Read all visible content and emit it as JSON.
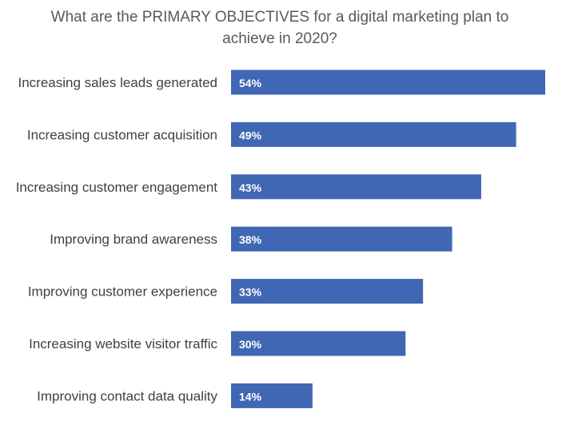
{
  "chart_data": {
    "type": "bar",
    "orientation": "horizontal",
    "title": "What are the PRIMARY OBJECTIVES for a digital marketing plan to achieve in 2020?",
    "categories": [
      "Increasing sales leads generated",
      "Increasing customer acquisition",
      "Increasing customer engagement",
      "Improving brand awareness",
      "Improving customer experience",
      "Increasing website visitor traffic",
      "Improving contact data quality"
    ],
    "values": [
      54,
      49,
      43,
      38,
      33,
      30,
      14
    ],
    "value_labels": [
      "54%",
      "49%",
      "43%",
      "38%",
      "33%",
      "30%",
      "14%"
    ],
    "unit": "%",
    "xlim": [
      0,
      54
    ],
    "grid": false,
    "legend": "none",
    "bar_color": "#4067b3"
  }
}
